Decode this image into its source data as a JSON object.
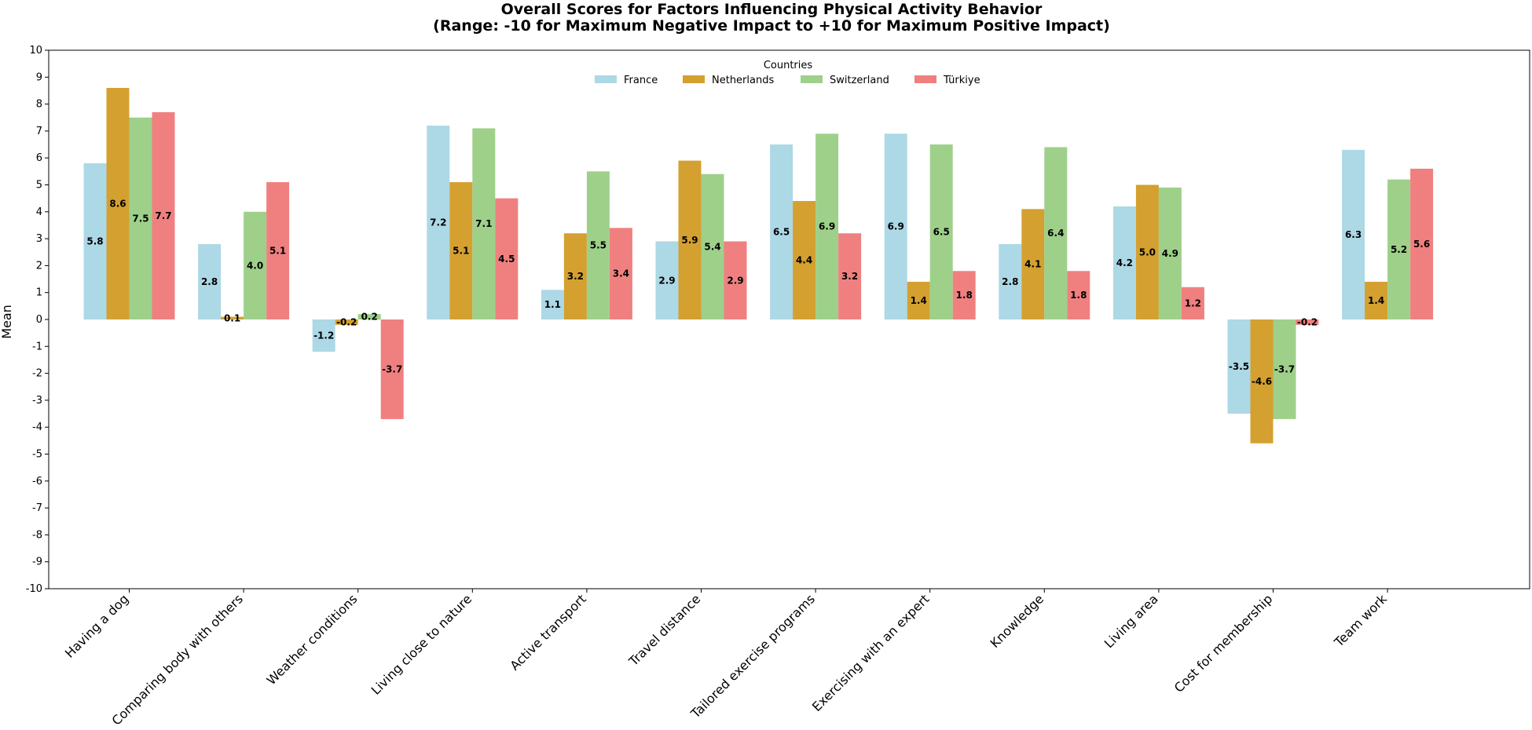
{
  "chart_data": {
    "type": "bar",
    "title": "Overall Scores for Factors Influencing Physical Activity Behavior",
    "subtitle": "(Range: -10 for Maximum Negative Impact to +10 for Maximum Positive Impact)",
    "xlabel": "",
    "ylabel": "Mean",
    "ylim": [
      -10,
      10
    ],
    "yticks": [
      -10,
      -9,
      -8,
      -7,
      -6,
      -5,
      -4,
      -3,
      -2,
      -1,
      0,
      1,
      2,
      3,
      4,
      5,
      6,
      7,
      8,
      9,
      10
    ],
    "grid": false,
    "legend": {
      "title": "Countries",
      "placement": "top-center",
      "ncol": 4
    },
    "categories": [
      "Having a dog",
      "Comparing body with others",
      "Weather conditions",
      "Living close to nature",
      "Active transport",
      "Travel distance",
      "Tailored exercise programs",
      "Exercising with an expert",
      "Knowledge",
      "Living area",
      "Cost for membership",
      "Team work"
    ],
    "series": [
      {
        "name": "France",
        "color": "#add8e6",
        "values": [
          5.8,
          2.8,
          -1.2,
          7.2,
          1.1,
          2.9,
          6.5,
          6.9,
          2.8,
          4.2,
          -3.5,
          6.3
        ]
      },
      {
        "name": "Netherlands",
        "color": "#d4a030",
        "values": [
          8.6,
          0.1,
          -0.2,
          5.1,
          3.2,
          5.9,
          4.4,
          1.4,
          4.1,
          5.0,
          -4.6,
          1.4
        ]
      },
      {
        "name": "Switzerland",
        "color": "#9ed08a",
        "values": [
          7.5,
          4.0,
          0.2,
          7.1,
          5.5,
          5.4,
          6.9,
          6.5,
          6.4,
          4.9,
          -3.7,
          5.2
        ]
      },
      {
        "name": "Türkiye",
        "color": "#f08080",
        "values": [
          7.7,
          5.1,
          -3.7,
          4.5,
          3.4,
          2.9,
          3.2,
          1.8,
          1.8,
          1.2,
          -0.2,
          5.6
        ]
      }
    ]
  }
}
